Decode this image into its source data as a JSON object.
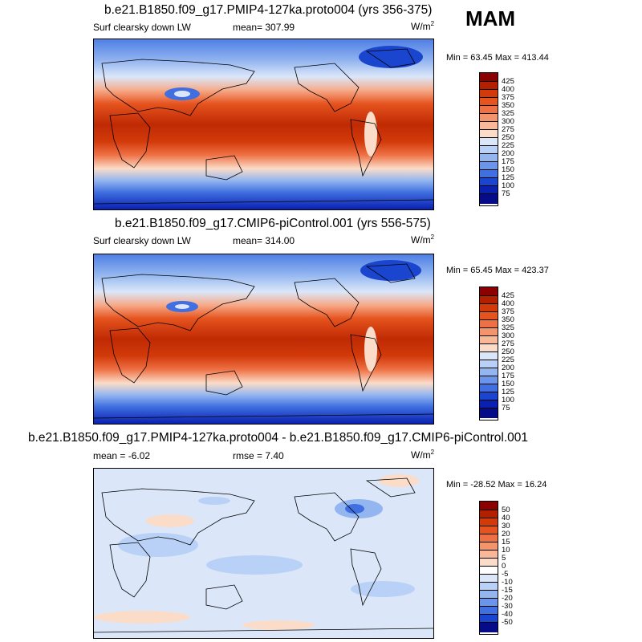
{
  "season": "MAM",
  "panels": [
    {
      "title": "b.e21.B1850.f09_g17.PMIP4-127ka.proto004 (yrs 356-375)",
      "left_label": "Surf clearsky down LW",
      "center_label": "mean= 307.99",
      "units": "W/m",
      "units_sup": "2",
      "minmax": "Min =  63.45 Max = 413.44"
    },
    {
      "title": "b.e21.B1850.f09_g17.CMIP6-piControl.001 (yrs 556-575)",
      "left_label": "Surf clearsky down LW",
      "center_label": "mean= 314.00",
      "units": "W/m",
      "units_sup": "2",
      "minmax": "Min =  65.45 Max = 423.37"
    },
    {
      "title": "b.e21.B1850.f09_g17.PMIP4-127ka.proto004 - b.e21.B1850.f09_g17.CMIP6-piControl.001",
      "left_label": "mean =  -6.02",
      "center_label": "rmse =  7.40",
      "units": "W/m",
      "units_sup": "2",
      "minmax": "Min = -28.52 Max =  16.24"
    }
  ],
  "chart_data": [
    {
      "type": "heatmap",
      "title": "b.e21.B1850.f09_g17.PMIP4-127ka.proto004 (yrs 356-375)",
      "variable": "Surf clearsky down LW",
      "units": "W/m2",
      "mean": 307.99,
      "min": 63.45,
      "max": 413.44,
      "colorbar_levels": [
        425,
        400,
        375,
        350,
        325,
        300,
        275,
        250,
        225,
        200,
        175,
        150,
        125,
        100,
        75
      ]
    },
    {
      "type": "heatmap",
      "title": "b.e21.B1850.f09_g17.CMIP6-piControl.001 (yrs 556-575)",
      "variable": "Surf clearsky down LW",
      "units": "W/m2",
      "mean": 314.0,
      "min": 65.45,
      "max": 423.37,
      "colorbar_levels": [
        425,
        400,
        375,
        350,
        325,
        300,
        275,
        250,
        225,
        200,
        175,
        150,
        125,
        100,
        75
      ]
    },
    {
      "type": "heatmap",
      "title": "b.e21.B1850.f09_g17.PMIP4-127ka.proto004 - b.e21.B1850.f09_g17.CMIP6-piControl.001",
      "units": "W/m2",
      "mean": -6.02,
      "rmse": 7.4,
      "min": -28.52,
      "max": 16.24,
      "colorbar_levels": [
        50,
        40,
        30,
        20,
        15,
        10,
        5,
        0,
        -5,
        -10,
        -15,
        -20,
        -30,
        -40,
        -50
      ]
    }
  ],
  "colors": {
    "abs_scale": [
      "#8b0000",
      "#b22000",
      "#d23a0a",
      "#e5531e",
      "#ee7145",
      "#f4946d",
      "#f9b898",
      "#fbdcc8",
      "#dbe7f9",
      "#b9d1f6",
      "#93b6f0",
      "#6a95ea",
      "#3f6fe0",
      "#1a45cf",
      "#0a20b0",
      "#060c88"
    ],
    "diff_scale": [
      "#8b0000",
      "#b22000",
      "#d23a0a",
      "#e5531e",
      "#ee7145",
      "#f4946d",
      "#f9b898",
      "#fbdcc8",
      "#ffffff",
      "#dbe7f9",
      "#b9d1f6",
      "#93b6f0",
      "#6a95ea",
      "#3f6fe0",
      "#1a45cf",
      "#060c88"
    ]
  }
}
